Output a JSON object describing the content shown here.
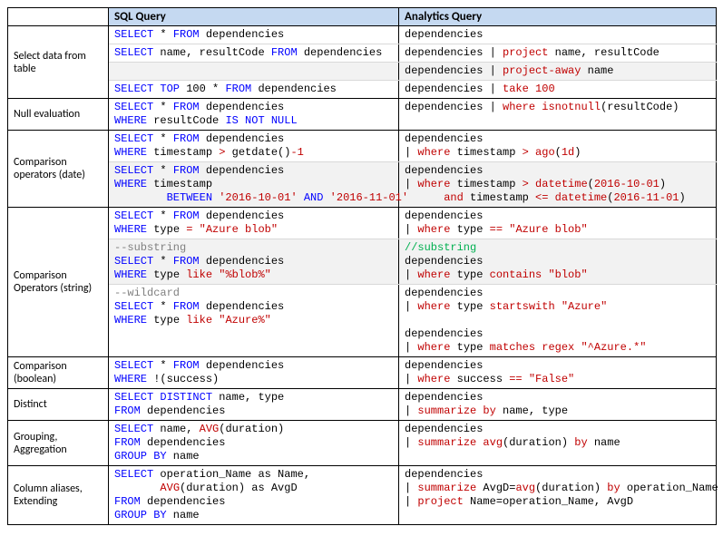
{
  "header": {
    "blank": "",
    "sql": "SQL Query",
    "analytics": "Analytics Query"
  },
  "groups": [
    {
      "label": "Select data from table",
      "rows": [
        {
          "sql": [
            [
              {
                "t": "SELECT",
                "c": "k"
              },
              {
                "t": " * "
              },
              {
                "t": "FROM",
                "c": "k"
              },
              {
                "t": " dependencies"
              }
            ]
          ],
          "ana": [
            [
              {
                "t": "dependencies"
              }
            ]
          ]
        },
        {
          "sql": [
            [
              {
                "t": "SELECT",
                "c": "k"
              },
              {
                "t": " name, resultCode "
              },
              {
                "t": "FROM",
                "c": "k"
              },
              {
                "t": " dependencies"
              }
            ]
          ],
          "ana": [
            [
              {
                "t": "dependencies | "
              },
              {
                "t": "project",
                "c": "r"
              },
              {
                "t": " name, resultCode"
              }
            ]
          ]
        },
        {
          "sql": [
            [
              {
                "t": ""
              }
            ]
          ],
          "ana": [
            [
              {
                "t": "dependencies | "
              },
              {
                "t": "project-away",
                "c": "r"
              },
              {
                "t": " name"
              }
            ]
          ],
          "alt": true
        },
        {
          "sql": [
            [
              {
                "t": "SELECT TOP",
                "c": "k"
              },
              {
                "t": " 100 * "
              },
              {
                "t": "FROM",
                "c": "k"
              },
              {
                "t": " dependencies"
              }
            ]
          ],
          "ana": [
            [
              {
                "t": "dependencies | "
              },
              {
                "t": "take",
                "c": "r"
              },
              {
                "t": " "
              },
              {
                "t": "100",
                "c": "r"
              }
            ]
          ]
        }
      ]
    },
    {
      "label": "Null evaluation",
      "rows": [
        {
          "sql": [
            [
              {
                "t": "SELECT",
                "c": "k"
              },
              {
                "t": " * "
              },
              {
                "t": "FROM",
                "c": "k"
              },
              {
                "t": " dependencies"
              }
            ],
            [
              {
                "t": "WHERE",
                "c": "k"
              },
              {
                "t": " resultCode "
              },
              {
                "t": "IS NOT NULL",
                "c": "k"
              }
            ]
          ],
          "ana": [
            [
              {
                "t": "dependencies | "
              },
              {
                "t": "where isnotnull",
                "c": "r"
              },
              {
                "t": "(resultCode)"
              }
            ]
          ]
        }
      ]
    },
    {
      "label": "Comparison operators (date)",
      "rows": [
        {
          "sql": [
            [
              {
                "t": "SELECT",
                "c": "k"
              },
              {
                "t": " * "
              },
              {
                "t": "FROM",
                "c": "k"
              },
              {
                "t": " dependencies"
              }
            ],
            [
              {
                "t": "WHERE",
                "c": "k"
              },
              {
                "t": " timestamp "
              },
              {
                "t": ">",
                "c": "r"
              },
              {
                "t": " getdate()"
              },
              {
                "t": "-1",
                "c": "r"
              }
            ]
          ],
          "ana": [
            [
              {
                "t": "dependencies"
              }
            ],
            [
              {
                "t": "| "
              },
              {
                "t": "where",
                "c": "r"
              },
              {
                "t": " timestamp "
              },
              {
                "t": "> ago",
                "c": "r"
              },
              {
                "t": "("
              },
              {
                "t": "1d",
                "c": "r"
              },
              {
                "t": ")"
              }
            ]
          ]
        },
        {
          "sql": [
            [
              {
                "t": "SELECT",
                "c": "k"
              },
              {
                "t": " * "
              },
              {
                "t": "FROM",
                "c": "k"
              },
              {
                "t": " dependencies"
              }
            ],
            [
              {
                "t": "WHERE",
                "c": "k"
              },
              {
                "t": " timestamp"
              }
            ],
            [
              {
                "t": "        "
              },
              {
                "t": "BETWEEN",
                "c": "k"
              },
              {
                "t": " "
              },
              {
                "t": "'2016-10-01'",
                "c": "r"
              },
              {
                "t": " "
              },
              {
                "t": "AND",
                "c": "k"
              },
              {
                "t": " "
              },
              {
                "t": "'2016-11-01'",
                "c": "r"
              }
            ]
          ],
          "ana": [
            [
              {
                "t": "dependencies"
              }
            ],
            [
              {
                "t": "| "
              },
              {
                "t": "where",
                "c": "r"
              },
              {
                "t": " timestamp "
              },
              {
                "t": "> datetime",
                "c": "r"
              },
              {
                "t": "("
              },
              {
                "t": "2016-10-01",
                "c": "r"
              },
              {
                "t": ")"
              }
            ],
            [
              {
                "t": "      "
              },
              {
                "t": "and",
                "c": "r"
              },
              {
                "t": " timestamp "
              },
              {
                "t": "<= datetime",
                "c": "r"
              },
              {
                "t": "("
              },
              {
                "t": "2016-11-01",
                "c": "r"
              },
              {
                "t": ")"
              }
            ]
          ],
          "alt": true
        }
      ]
    },
    {
      "label": "Comparison Operators (string)",
      "rows": [
        {
          "sql": [
            [
              {
                "t": "SELECT",
                "c": "k"
              },
              {
                "t": " * "
              },
              {
                "t": "FROM",
                "c": "k"
              },
              {
                "t": " dependencies"
              }
            ],
            [
              {
                "t": "WHERE",
                "c": "k"
              },
              {
                "t": " type "
              },
              {
                "t": "=",
                "c": "r"
              },
              {
                "t": " "
              },
              {
                "t": "\"Azure blob\"",
                "c": "r"
              }
            ]
          ],
          "ana": [
            [
              {
                "t": "dependencies"
              }
            ],
            [
              {
                "t": "| "
              },
              {
                "t": "where",
                "c": "r"
              },
              {
                "t": " type "
              },
              {
                "t": "==",
                "c": "r"
              },
              {
                "t": " "
              },
              {
                "t": "\"Azure blob\"",
                "c": "r"
              }
            ]
          ]
        },
        {
          "sql": [
            [
              {
                "t": "--substring",
                "c": "g"
              }
            ],
            [
              {
                "t": "SELECT",
                "c": "k"
              },
              {
                "t": " * "
              },
              {
                "t": "FROM",
                "c": "k"
              },
              {
                "t": " dependencies"
              }
            ],
            [
              {
                "t": "WHERE",
                "c": "k"
              },
              {
                "t": " type "
              },
              {
                "t": "like",
                "c": "r"
              },
              {
                "t": " "
              },
              {
                "t": "\"%blob%\"",
                "c": "r"
              }
            ]
          ],
          "ana": [
            [
              {
                "t": "//substring",
                "c": "gg"
              }
            ],
            [
              {
                "t": "dependencies"
              }
            ],
            [
              {
                "t": "| "
              },
              {
                "t": "where",
                "c": "r"
              },
              {
                "t": " type "
              },
              {
                "t": "contains",
                "c": "r"
              },
              {
                "t": " "
              },
              {
                "t": "\"blob\"",
                "c": "r"
              }
            ]
          ],
          "alt": true
        },
        {
          "sql": [
            [
              {
                "t": "--wildcard",
                "c": "g"
              }
            ],
            [
              {
                "t": "SELECT",
                "c": "k"
              },
              {
                "t": " * "
              },
              {
                "t": "FROM",
                "c": "k"
              },
              {
                "t": " dependencies"
              }
            ],
            [
              {
                "t": "WHERE",
                "c": "k"
              },
              {
                "t": " type "
              },
              {
                "t": "like",
                "c": "r"
              },
              {
                "t": " "
              },
              {
                "t": "\"Azure%\"",
                "c": "r"
              }
            ]
          ],
          "ana": [
            [
              {
                "t": "dependencies"
              }
            ],
            [
              {
                "t": "| "
              },
              {
                "t": "where",
                "c": "r"
              },
              {
                "t": " type "
              },
              {
                "t": "startswith",
                "c": "r"
              },
              {
                "t": " "
              },
              {
                "t": "\"Azure\"",
                "c": "r"
              }
            ],
            [
              {
                "t": ""
              }
            ],
            [
              {
                "t": "dependencies"
              }
            ],
            [
              {
                "t": "| "
              },
              {
                "t": "where",
                "c": "r"
              },
              {
                "t": " type "
              },
              {
                "t": "matches regex",
                "c": "r"
              },
              {
                "t": " "
              },
              {
                "t": "\"^Azure.*\"",
                "c": "r"
              }
            ]
          ]
        }
      ]
    },
    {
      "label": "Comparison (boolean)",
      "rows": [
        {
          "sql": [
            [
              {
                "t": "SELECT",
                "c": "k"
              },
              {
                "t": " * "
              },
              {
                "t": "FROM",
                "c": "k"
              },
              {
                "t": " dependencies"
              }
            ],
            [
              {
                "t": "WHERE",
                "c": "k"
              },
              {
                "t": " !(success)"
              }
            ]
          ],
          "ana": [
            [
              {
                "t": "dependencies"
              }
            ],
            [
              {
                "t": "| "
              },
              {
                "t": "where",
                "c": "r"
              },
              {
                "t": " success "
              },
              {
                "t": "==",
                "c": "r"
              },
              {
                "t": " "
              },
              {
                "t": "\"False\"",
                "c": "r"
              }
            ]
          ]
        }
      ]
    },
    {
      "label": "Distinct",
      "rows": [
        {
          "sql": [
            [
              {
                "t": "SELECT DISTINCT",
                "c": "k"
              },
              {
                "t": " name, type"
              }
            ],
            [
              {
                "t": "FROM",
                "c": "k"
              },
              {
                "t": " dependencies"
              }
            ]
          ],
          "ana": [
            [
              {
                "t": "dependencies"
              }
            ],
            [
              {
                "t": "| "
              },
              {
                "t": "summarize by",
                "c": "r"
              },
              {
                "t": " name, type"
              }
            ]
          ]
        }
      ]
    },
    {
      "label": "Grouping, Aggregation",
      "rows": [
        {
          "sql": [
            [
              {
                "t": "SELECT",
                "c": "k"
              },
              {
                "t": " name, "
              },
              {
                "t": "AVG",
                "c": "r"
              },
              {
                "t": "(duration)"
              }
            ],
            [
              {
                "t": "FROM",
                "c": "k"
              },
              {
                "t": " dependencies"
              }
            ],
            [
              {
                "t": "GROUP BY",
                "c": "k"
              },
              {
                "t": " name"
              }
            ]
          ],
          "ana": [
            [
              {
                "t": "dependencies"
              }
            ],
            [
              {
                "t": "| "
              },
              {
                "t": "summarize avg",
                "c": "r"
              },
              {
                "t": "(duration) "
              },
              {
                "t": "by",
                "c": "r"
              },
              {
                "t": " name"
              }
            ]
          ]
        }
      ]
    },
    {
      "label": "Column aliases, Extending",
      "rows": [
        {
          "sql": [
            [
              {
                "t": "SELECT",
                "c": "k"
              },
              {
                "t": " operation_Name as Name,"
              }
            ],
            [
              {
                "t": "       "
              },
              {
                "t": "AVG",
                "c": "r"
              },
              {
                "t": "(duration) as AvgD"
              }
            ],
            [
              {
                "t": "FROM",
                "c": "k"
              },
              {
                "t": " dependencies"
              }
            ],
            [
              {
                "t": "GROUP BY",
                "c": "k"
              },
              {
                "t": " name"
              }
            ]
          ],
          "ana": [
            [
              {
                "t": "dependencies"
              }
            ],
            [
              {
                "t": "| "
              },
              {
                "t": "summarize",
                "c": "r"
              },
              {
                "t": " AvgD="
              },
              {
                "t": "avg",
                "c": "r"
              },
              {
                "t": "(duration) "
              },
              {
                "t": "by",
                "c": "r"
              },
              {
                "t": " operation_Name"
              }
            ],
            [
              {
                "t": "| "
              },
              {
                "t": "project",
                "c": "r"
              },
              {
                "t": " Name=operation_Name, AvgD"
              }
            ]
          ]
        }
      ]
    }
  ]
}
